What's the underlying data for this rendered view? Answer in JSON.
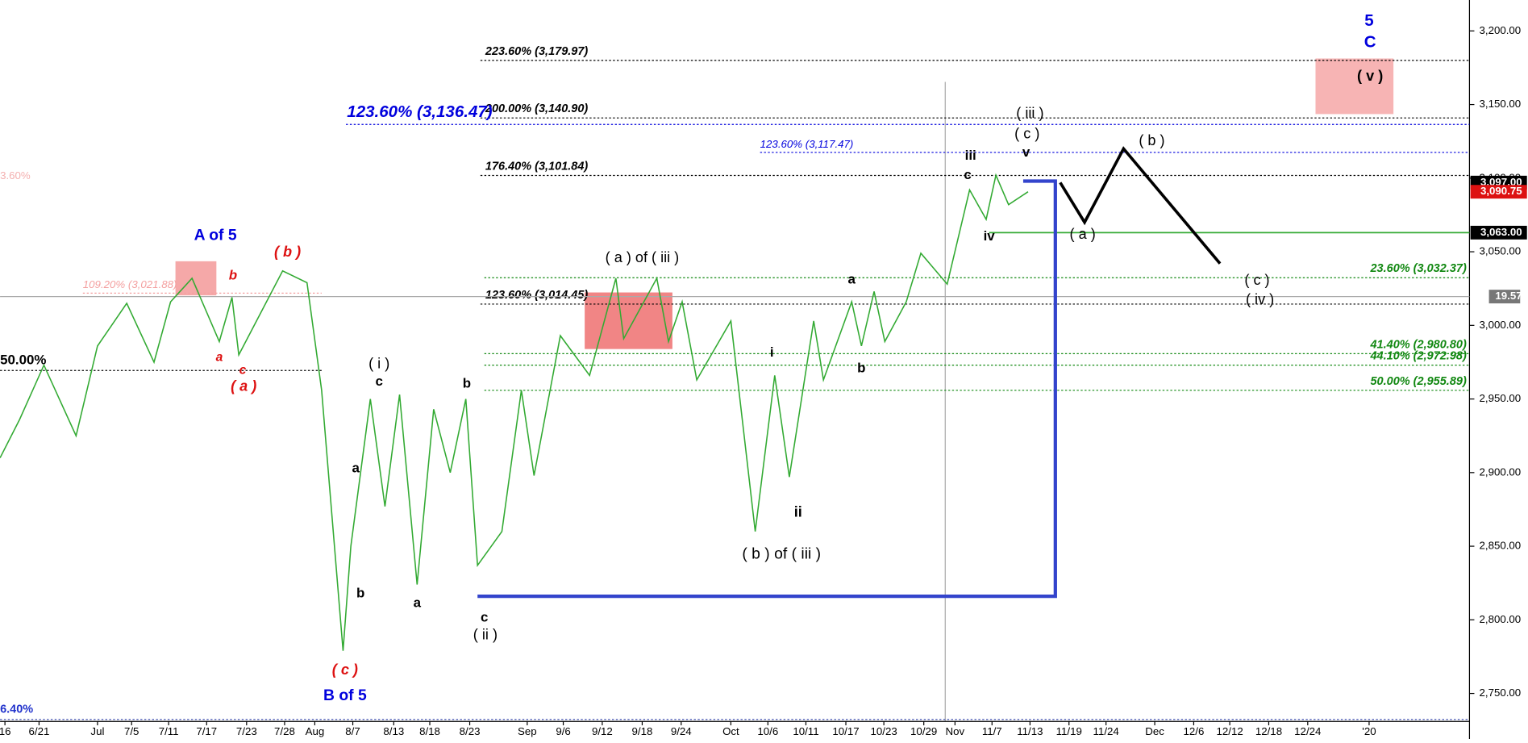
{
  "chart_data": {
    "type": "line",
    "ylim": [
      2731,
      3221
    ],
    "yticks": [
      {
        "value": 2750,
        "label": "2,750.00"
      },
      {
        "value": 2800,
        "label": "2,800.00"
      },
      {
        "value": 2850,
        "label": "2,850.00"
      },
      {
        "value": 2900,
        "label": "2,900.00"
      },
      {
        "value": 2950,
        "label": "2,950.00"
      },
      {
        "value": 3000,
        "label": "3,000.00"
      },
      {
        "value": 3050,
        "label": "3,050.00"
      },
      {
        "value": 3100,
        "label": "3,100.00"
      },
      {
        "value": 3150,
        "label": "3,150.00"
      },
      {
        "value": 3200,
        "label": "3,200.00"
      }
    ],
    "x_labels": [
      "16",
      "6/21",
      "Jul",
      "7/5",
      "7/11",
      "7/17",
      "7/23",
      "7/28",
      "Aug",
      "8/7",
      "8/13",
      "8/18",
      "8/23",
      "Sep",
      "9/6",
      "9/12",
      "9/18",
      "9/24",
      "Oct",
      "10/6",
      "10/11",
      "10/17",
      "10/23",
      "10/29",
      "Nov",
      "11/7",
      "11/13",
      "11/19",
      "11/24",
      "Dec",
      "12/6",
      "12/12",
      "12/18",
      "12/24",
      "'20"
    ],
    "price": {
      "color": "#33aa33",
      "values": [
        2910,
        2936,
        2973,
        2925,
        2986,
        3015,
        2975,
        3016,
        3032,
        2989,
        3019,
        2980,
        3037,
        3029,
        2956,
        2779,
        2850,
        2950,
        2877,
        2953,
        2824,
        2943,
        2900,
        2950,
        2837,
        2860,
        2956,
        2898,
        2993,
        2966,
        3032,
        2991,
        3032,
        2989,
        3016,
        2963,
        3003,
        2860,
        2966,
        2897,
        3003,
        2963,
        3016,
        2986,
        3023,
        2989,
        3016,
        3049,
        3028,
        3092,
        3072,
        3102,
        3082,
        3090.75
      ]
    },
    "projection": {
      "color": "#000000",
      "values": [
        3097,
        3070,
        3120,
        3042
      ]
    },
    "channel": {
      "color": "#3344cc",
      "values": [
        2816,
        2816,
        3098,
        3098
      ]
    },
    "fib_levels": [
      {
        "value": 3179.97,
        "label": "223.60% (3,179.97)",
        "color": "#000000"
      },
      {
        "value": 3140.9,
        "label": "200.00% (3,140.90)",
        "color": "#000000"
      },
      {
        "value": 3136.47,
        "label": "123.60% (3,136.47)",
        "color": "#0000dd"
      },
      {
        "value": 3117.47,
        "label": "123.60% (3,117.47)",
        "color": "#0000dd"
      },
      {
        "value": 3101.84,
        "label": "176.40% (3,101.84)",
        "color": "#000000"
      },
      {
        "value": 3014.45,
        "label": "123.60% (3,014.45)",
        "color": "#000000"
      },
      {
        "value": 3032.37,
        "label": "23.60% (3,032.37)",
        "color": "#118811"
      },
      {
        "value": 2980.8,
        "label": "41.40% (2,980.80)",
        "color": "#118811"
      },
      {
        "value": 2972.98,
        "label": "44.10% (2,972.98)",
        "color": "#118811"
      },
      {
        "value": 2955.89,
        "label": "50.00% (2,955.89)",
        "color": "#118811"
      },
      {
        "value": 3021.88,
        "label": "109.20% (3,021.88)",
        "color": "#f4a0a0"
      }
    ],
    "price_labels": [
      {
        "value": 3097.0,
        "label": "3,097.00",
        "color": "#000000"
      },
      {
        "value": 3090.75,
        "label": "3,090.75",
        "color": "#dd1111"
      },
      {
        "value": 3063.0,
        "label": "3,063.00",
        "color": "#000000"
      },
      {
        "value": 3019.57,
        "label": "19.57",
        "color": "#777777"
      }
    ],
    "side_labels": [
      "50.00%",
      "3.60%",
      "6.40%"
    ],
    "annotations": [
      {
        "text": "5",
        "color": "#0000dd"
      },
      {
        "text": "C",
        "color": "#0000dd"
      },
      {
        "text": "( v )",
        "color": "#000000"
      },
      {
        "text": "( iii )",
        "color": "#000000"
      },
      {
        "text": "( c )",
        "color": "#000000"
      },
      {
        "text": "iii",
        "color": "#000000"
      },
      {
        "text": "v",
        "color": "#000000"
      },
      {
        "text": "c",
        "color": "#000000"
      },
      {
        "text": "iv",
        "color": "#000000"
      },
      {
        "text": "( b )",
        "color": "#000000"
      },
      {
        "text": "( a )",
        "color": "#000000"
      },
      {
        "text": "( c )",
        "color": "#000000"
      },
      {
        "text": "( iv )",
        "color": "#000000"
      },
      {
        "text": "A of 5",
        "color": "#0000dd"
      },
      {
        "text": "( b )",
        "color": "#dd1111"
      },
      {
        "text": "b",
        "color": "#dd1111"
      },
      {
        "text": "a",
        "color": "#dd1111"
      },
      {
        "text": "c",
        "color": "#dd1111"
      },
      {
        "text": "( a )",
        "color": "#dd1111"
      },
      {
        "text": "( i )",
        "color": "#000000"
      },
      {
        "text": "c",
        "color": "#000000"
      },
      {
        "text": "b",
        "color": "#000000"
      },
      {
        "text": "a",
        "color": "#000000"
      },
      {
        "text": "b",
        "color": "#000000"
      },
      {
        "text": "a",
        "color": "#000000"
      },
      {
        "text": "( c )",
        "color": "#dd1111"
      },
      {
        "text": "B of 5",
        "color": "#0000dd"
      },
      {
        "text": "c",
        "color": "#000000"
      },
      {
        "text": "( ii )",
        "color": "#000000"
      },
      {
        "text": "( a ) of ( iii )",
        "color": "#000000"
      },
      {
        "text": "a",
        "color": "#000000"
      },
      {
        "text": "b",
        "color": "#000000"
      },
      {
        "text": "i",
        "color": "#000000"
      },
      {
        "text": "ii",
        "color": "#000000"
      },
      {
        "text": "( b ) of ( iii )",
        "color": "#000000"
      }
    ]
  }
}
